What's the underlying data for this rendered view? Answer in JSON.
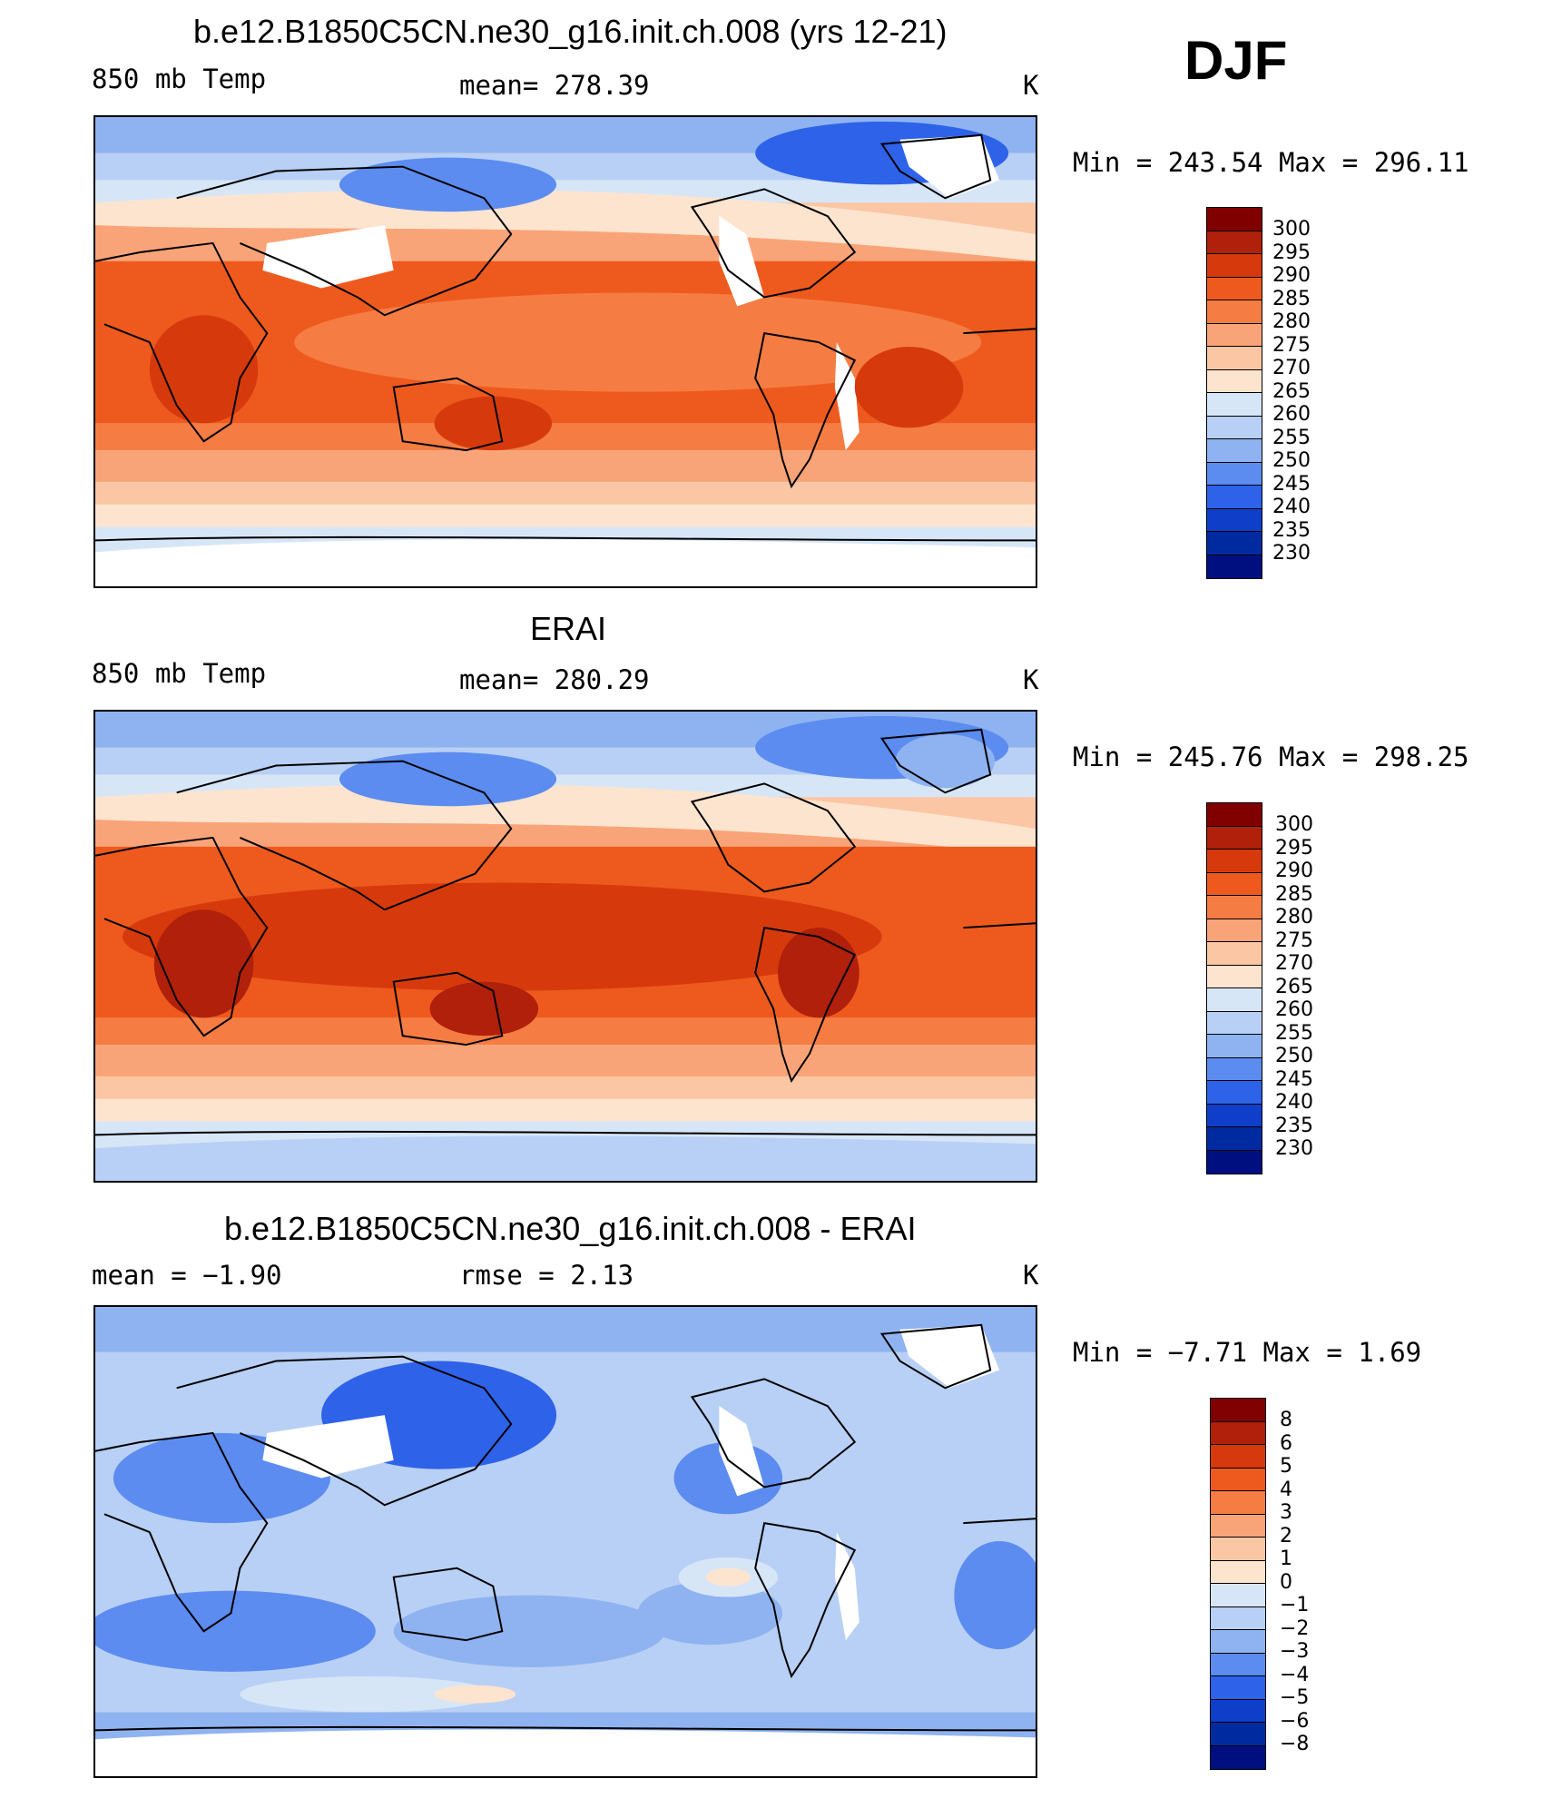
{
  "figure": {
    "season": "DJF"
  },
  "panels": [
    {
      "title": "b.e12.B1850C5CN.ne30_g16.init.ch.008 (yrs 12-21)",
      "left_label": "850 mb Temp",
      "center_label": "mean=  278.39",
      "units": "K",
      "minmax": "Min  =  243.54  Max  =  296.11",
      "legend_labels": [
        "300",
        "295",
        "290",
        "285",
        "280",
        "275",
        "270",
        "265",
        "260",
        "255",
        "250",
        "245",
        "240",
        "235",
        "230"
      ]
    },
    {
      "title": "ERAI",
      "left_label": "850 mb Temp",
      "center_label": "mean=  280.29",
      "units": "K",
      "minmax": "Min  =  245.76  Max  =  298.25",
      "legend_labels": [
        "300",
        "295",
        "290",
        "285",
        "280",
        "275",
        "270",
        "265",
        "260",
        "255",
        "250",
        "245",
        "240",
        "235",
        "230"
      ]
    },
    {
      "title": "b.e12.B1850C5CN.ne30_g16.init.ch.008 - ERAI",
      "left_label": "mean  =    −1.90",
      "center_label": "rmse  =     2.13",
      "units": "K",
      "minmax": "Min  =    −7.71  Max  =      1.69",
      "legend_labels": [
        "8",
        "6",
        "5",
        "4",
        "3",
        "2",
        "1",
        "0",
        "−1",
        "−2",
        "−3",
        "−4",
        "−5",
        "−6",
        "−8"
      ]
    }
  ],
  "colors": {
    "temp_scale": [
      "#800000",
      "#b0200a",
      "#d63a0c",
      "#ee5a1e",
      "#f57d43",
      "#f9a478",
      "#fbc6a4",
      "#fde4cf",
      "#d7e6f7",
      "#b8d0f5",
      "#8fb3f0",
      "#5c8cf0",
      "#2e62e8",
      "#0f3fc8",
      "#002aa0",
      "#000f80"
    ],
    "diff_scale": [
      "#800000",
      "#b0200a",
      "#d63a0c",
      "#ee5a1e",
      "#f57d43",
      "#f9a478",
      "#fbc6a4",
      "#fde4cf",
      "#d7e6f7",
      "#b8d0f5",
      "#8fb3f0",
      "#5c8cf0",
      "#2e62e8",
      "#0f3fc8",
      "#002aa0",
      "#000f80"
    ]
  }
}
